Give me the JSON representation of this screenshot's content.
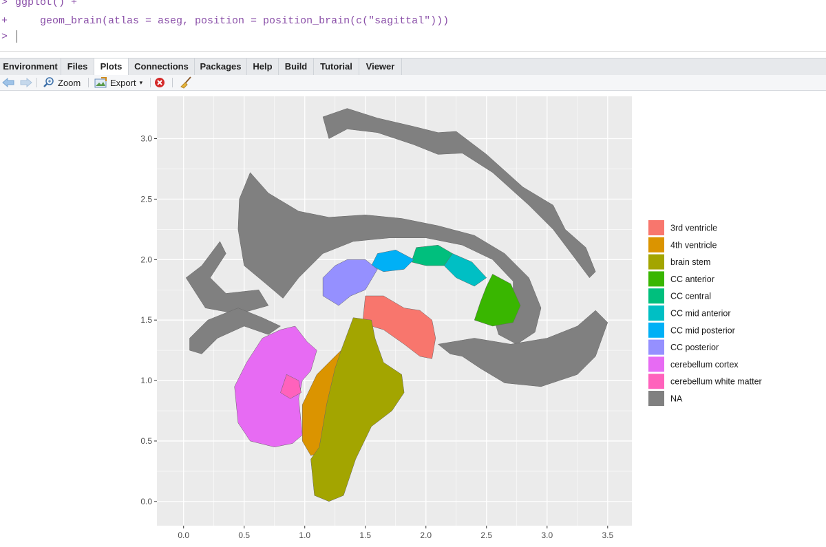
{
  "console": {
    "prompt": ">",
    "continuation": "+",
    "line1": "ggplot() +",
    "line2": "    geom_brain(atlas = aseg, position = position_brain(c(\"sagittal\")))"
  },
  "tabs": [
    "Environment",
    "Files",
    "Plots",
    "Connections",
    "Packages",
    "Help",
    "Build",
    "Tutorial",
    "Viewer"
  ],
  "active_tab": "Plots",
  "toolbar": {
    "zoom_label": "Zoom",
    "export_label": "Export"
  },
  "colors": {
    "3rd ventricle": "#F8766D",
    "4th ventricle": "#DB9400",
    "brain stem": "#A3A500",
    "CC anterior": "#39B600",
    "CC central": "#00BF7D",
    "CC mid anterior": "#00BFC4",
    "CC mid posterior": "#00B0F6",
    "CC posterior": "#9590FF",
    "cerebellum cortex": "#E76BF3",
    "cerebellum white matter": "#FF62BC",
    "NA": "#808080"
  },
  "chart_data": {
    "type": "map",
    "panel_background": "#EBEBEB",
    "grid": true,
    "legend_position": "right",
    "xlim": [
      -0.22,
      3.7
    ],
    "ylim": [
      -0.2,
      3.35
    ],
    "x_ticks": [
      0.0,
      0.5,
      1.0,
      1.5,
      2.0,
      2.5,
      3.0,
      3.5
    ],
    "x_tick_labels": [
      "0.0",
      "0.5",
      "1.0",
      "1.5",
      "2.0",
      "2.5",
      "3.0",
      "3.5"
    ],
    "y_ticks": [
      0.0,
      0.5,
      1.0,
      1.5,
      2.0,
      2.5,
      3.0
    ],
    "y_tick_labels": [
      "0.0",
      "0.5",
      "1.0",
      "1.5",
      "2.0",
      "2.5",
      "3.0"
    ],
    "legend": [
      "3rd ventricle",
      "4th ventricle",
      "brain stem",
      "CC anterior",
      "CC central",
      "CC mid anterior",
      "CC mid posterior",
      "CC posterior",
      "cerebellum cortex",
      "cerebellum white matter",
      "NA"
    ],
    "regions": [
      {
        "label": "NA",
        "points": [
          [
            1.15,
            3.18
          ],
          [
            1.35,
            3.25
          ],
          [
            1.6,
            3.17
          ],
          [
            1.9,
            3.1
          ],
          [
            2.1,
            3.05
          ],
          [
            2.25,
            3.06
          ],
          [
            2.5,
            2.87
          ],
          [
            2.8,
            2.6
          ],
          [
            3.05,
            2.45
          ],
          [
            3.15,
            2.25
          ],
          [
            3.32,
            2.1
          ],
          [
            3.4,
            1.9
          ],
          [
            3.35,
            1.85
          ],
          [
            3.2,
            2.05
          ],
          [
            3.05,
            2.25
          ],
          [
            2.85,
            2.45
          ],
          [
            2.55,
            2.72
          ],
          [
            2.3,
            2.88
          ],
          [
            2.1,
            2.87
          ],
          [
            1.9,
            2.95
          ],
          [
            1.6,
            3.05
          ],
          [
            1.35,
            3.08
          ],
          [
            1.2,
            3.0
          ]
        ]
      },
      {
        "label": "NA",
        "points": [
          [
            0.55,
            2.72
          ],
          [
            0.7,
            2.55
          ],
          [
            0.95,
            2.4
          ],
          [
            1.2,
            2.35
          ],
          [
            1.5,
            2.37
          ],
          [
            1.8,
            2.34
          ],
          [
            2.1,
            2.28
          ],
          [
            2.4,
            2.2
          ],
          [
            2.65,
            2.05
          ],
          [
            2.85,
            1.85
          ],
          [
            2.95,
            1.6
          ],
          [
            2.9,
            1.4
          ],
          [
            2.75,
            1.3
          ],
          [
            2.6,
            1.38
          ],
          [
            2.55,
            1.55
          ],
          [
            2.72,
            1.65
          ],
          [
            2.72,
            1.82
          ],
          [
            2.55,
            2.0
          ],
          [
            2.3,
            2.12
          ],
          [
            2.0,
            2.18
          ],
          [
            1.7,
            2.18
          ],
          [
            1.4,
            2.15
          ],
          [
            1.15,
            2.05
          ],
          [
            0.95,
            1.85
          ],
          [
            0.82,
            1.68
          ],
          [
            0.68,
            1.8
          ],
          [
            0.5,
            1.95
          ],
          [
            0.45,
            2.25
          ],
          [
            0.46,
            2.5
          ]
        ]
      },
      {
        "label": "NA",
        "points": [
          [
            0.02,
            1.85
          ],
          [
            0.15,
            1.95
          ],
          [
            0.3,
            2.15
          ],
          [
            0.35,
            2.05
          ],
          [
            0.22,
            1.85
          ],
          [
            0.35,
            1.72
          ],
          [
            0.62,
            1.75
          ],
          [
            0.7,
            1.62
          ],
          [
            0.45,
            1.55
          ],
          [
            0.18,
            1.6
          ]
        ]
      },
      {
        "label": "NA",
        "points": [
          [
            0.05,
            1.35
          ],
          [
            0.2,
            1.5
          ],
          [
            0.45,
            1.6
          ],
          [
            0.65,
            1.52
          ],
          [
            0.8,
            1.45
          ],
          [
            0.7,
            1.38
          ],
          [
            0.5,
            1.45
          ],
          [
            0.28,
            1.35
          ],
          [
            0.15,
            1.22
          ],
          [
            0.05,
            1.25
          ]
        ]
      },
      {
        "label": "NA",
        "points": [
          [
            2.1,
            1.3
          ],
          [
            2.4,
            1.35
          ],
          [
            2.7,
            1.3
          ],
          [
            3.0,
            1.35
          ],
          [
            3.25,
            1.45
          ],
          [
            3.4,
            1.58
          ],
          [
            3.5,
            1.48
          ],
          [
            3.4,
            1.2
          ],
          [
            3.25,
            1.05
          ],
          [
            2.95,
            0.95
          ],
          [
            2.65,
            0.98
          ],
          [
            2.45,
            1.1
          ],
          [
            2.3,
            1.2
          ],
          [
            2.2,
            1.22
          ]
        ]
      },
      {
        "label": "3rd ventricle",
        "points": [
          [
            1.5,
            1.7
          ],
          [
            1.65,
            1.7
          ],
          [
            1.82,
            1.6
          ],
          [
            1.95,
            1.58
          ],
          [
            2.05,
            1.5
          ],
          [
            2.08,
            1.35
          ],
          [
            2.05,
            1.18
          ],
          [
            1.95,
            1.2
          ],
          [
            1.82,
            1.3
          ],
          [
            1.65,
            1.42
          ],
          [
            1.55,
            1.45
          ],
          [
            1.48,
            1.5
          ]
        ]
      },
      {
        "label": "4th ventricle",
        "points": [
          [
            1.3,
            1.25
          ],
          [
            1.38,
            1.25
          ],
          [
            1.3,
            1.05
          ],
          [
            1.22,
            0.75
          ],
          [
            1.12,
            0.4
          ],
          [
            1.05,
            0.38
          ],
          [
            0.98,
            0.5
          ],
          [
            0.98,
            0.8
          ],
          [
            1.1,
            1.05
          ],
          [
            1.25,
            1.2
          ]
        ]
      },
      {
        "label": "brain stem",
        "points": [
          [
            1.4,
            1.52
          ],
          [
            1.55,
            1.5
          ],
          [
            1.58,
            1.35
          ],
          [
            1.65,
            1.15
          ],
          [
            1.8,
            1.05
          ],
          [
            1.82,
            0.9
          ],
          [
            1.72,
            0.75
          ],
          [
            1.55,
            0.62
          ],
          [
            1.42,
            0.35
          ],
          [
            1.32,
            0.05
          ],
          [
            1.2,
            0.0
          ],
          [
            1.08,
            0.05
          ],
          [
            1.05,
            0.35
          ],
          [
            1.12,
            0.45
          ],
          [
            1.18,
            0.8
          ],
          [
            1.25,
            1.1
          ],
          [
            1.3,
            1.25
          ]
        ]
      },
      {
        "label": "CC anterior",
        "points": [
          [
            2.55,
            1.88
          ],
          [
            2.7,
            1.8
          ],
          [
            2.78,
            1.62
          ],
          [
            2.72,
            1.48
          ],
          [
            2.55,
            1.45
          ],
          [
            2.4,
            1.5
          ],
          [
            2.45,
            1.65
          ],
          [
            2.5,
            1.78
          ]
        ]
      },
      {
        "label": "CC central",
        "points": [
          [
            1.92,
            2.1
          ],
          [
            2.1,
            2.12
          ],
          [
            2.22,
            2.05
          ],
          [
            2.15,
            1.95
          ],
          [
            2.0,
            1.95
          ],
          [
            1.88,
            1.98
          ]
        ]
      },
      {
        "label": "CC mid anterior",
        "points": [
          [
            2.22,
            2.05
          ],
          [
            2.38,
            1.98
          ],
          [
            2.5,
            1.85
          ],
          [
            2.4,
            1.78
          ],
          [
            2.25,
            1.85
          ],
          [
            2.15,
            1.95
          ]
        ]
      },
      {
        "label": "CC mid posterior",
        "points": [
          [
            1.6,
            2.05
          ],
          [
            1.75,
            2.08
          ],
          [
            1.9,
            2.0
          ],
          [
            1.82,
            1.92
          ],
          [
            1.65,
            1.9
          ],
          [
            1.55,
            1.95
          ]
        ]
      },
      {
        "label": "CC posterior",
        "points": [
          [
            1.35,
            2.0
          ],
          [
            1.5,
            2.0
          ],
          [
            1.6,
            1.92
          ],
          [
            1.5,
            1.75
          ],
          [
            1.38,
            1.7
          ],
          [
            1.28,
            1.62
          ],
          [
            1.15,
            1.7
          ],
          [
            1.15,
            1.85
          ],
          [
            1.25,
            1.95
          ]
        ]
      },
      {
        "label": "cerebellum cortex",
        "points": [
          [
            0.92,
            1.45
          ],
          [
            1.02,
            1.32
          ],
          [
            1.1,
            1.25
          ],
          [
            1.05,
            1.08
          ],
          [
            0.98,
            1.0
          ],
          [
            0.95,
            0.85
          ],
          [
            0.98,
            0.55
          ],
          [
            0.9,
            0.48
          ],
          [
            0.75,
            0.45
          ],
          [
            0.55,
            0.5
          ],
          [
            0.45,
            0.65
          ],
          [
            0.42,
            0.95
          ],
          [
            0.52,
            1.15
          ],
          [
            0.65,
            1.35
          ],
          [
            0.8,
            1.42
          ]
        ]
      },
      {
        "label": "cerebellum white matter",
        "points": [
          [
            0.85,
            1.05
          ],
          [
            0.95,
            1.0
          ],
          [
            0.97,
            0.9
          ],
          [
            0.88,
            0.85
          ],
          [
            0.8,
            0.9
          ]
        ]
      }
    ]
  }
}
